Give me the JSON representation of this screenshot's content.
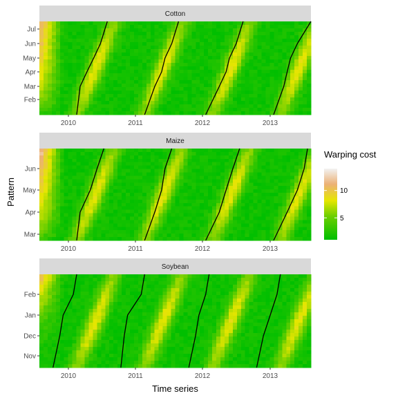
{
  "chart_data": {
    "type": "heatmap",
    "xlabel": "Time series",
    "ylabel": "Pattern",
    "x_ticks": [
      "2010",
      "2011",
      "2012",
      "2013"
    ],
    "legend": {
      "title": "Warping cost",
      "placement": "right",
      "ticks": [
        5,
        10
      ],
      "tick_labels": [
        "5",
        "10"
      ],
      "range": [
        1,
        14
      ],
      "colors": [
        "#00bf00",
        "#e6e600",
        "#ecb176",
        "#f2f2f2"
      ]
    },
    "panels": [
      {
        "name": "Cotton",
        "y_ticks": [
          "Feb",
          "Mar",
          "Apr",
          "May",
          "Jun",
          "Jul"
        ],
        "cost_min": 1.5,
        "cost_max": 12.5,
        "alignment_paths": [
          [
            [
              2010.15,
              "Feb"
            ],
            [
              2010.2,
              "Mar"
            ],
            [
              2010.3,
              "Apr"
            ],
            [
              2010.4,
              "May"
            ],
            [
              2010.5,
              "Jun"
            ],
            [
              2010.6,
              "Jul"
            ]
          ],
          [
            [
              2011.15,
              "Feb"
            ],
            [
              2011.3,
              "Mar"
            ],
            [
              2011.4,
              "Apr"
            ],
            [
              2011.45,
              "May"
            ],
            [
              2011.55,
              "Jun"
            ],
            [
              2011.65,
              "Jul"
            ]
          ],
          [
            [
              2012.05,
              "Feb"
            ],
            [
              2012.25,
              "Mar"
            ],
            [
              2012.35,
              "Apr"
            ],
            [
              2012.4,
              "May"
            ],
            [
              2012.5,
              "Jun"
            ],
            [
              2012.6,
              "Jul"
            ]
          ],
          [
            [
              2013.05,
              "Feb"
            ],
            [
              2013.2,
              "Mar"
            ],
            [
              2013.25,
              "Apr"
            ],
            [
              2013.3,
              "May"
            ],
            [
              2013.4,
              "Jun"
            ],
            [
              2013.6,
              "Jul"
            ]
          ]
        ]
      },
      {
        "name": "Maize",
        "y_ticks": [
          "Mar",
          "Apr",
          "May",
          "Jun"
        ],
        "cost_min": 1.5,
        "cost_max": 13.0,
        "alignment_paths": [
          [
            [
              2010.15,
              "Mar"
            ],
            [
              2010.2,
              "Apr"
            ],
            [
              2010.35,
              "May"
            ],
            [
              2010.45,
              "Jun"
            ],
            [
              2010.55,
              "Jun"
            ]
          ],
          [
            [
              2011.15,
              "Mar"
            ],
            [
              2011.3,
              "Apr"
            ],
            [
              2011.4,
              "May"
            ],
            [
              2011.45,
              "Jun"
            ],
            [
              2011.55,
              "Jun"
            ]
          ],
          [
            [
              2012.05,
              "Mar"
            ],
            [
              2012.25,
              "Apr"
            ],
            [
              2012.35,
              "May"
            ],
            [
              2012.45,
              "Jun"
            ],
            [
              2012.55,
              "Jun"
            ]
          ],
          [
            [
              2013.05,
              "Mar"
            ],
            [
              2013.25,
              "Apr"
            ],
            [
              2013.4,
              "May"
            ],
            [
              2013.5,
              "Jun"
            ],
            [
              2013.55,
              "Jun"
            ]
          ]
        ]
      },
      {
        "name": "Soybean",
        "y_ticks": [
          "Nov",
          "Dec",
          "Jan",
          "Feb"
        ],
        "cost_min": 1.5,
        "cost_max": 12.0,
        "alignment_paths": [
          [
            [
              2009.8,
              "Nov"
            ],
            [
              2009.9,
              "Dec"
            ],
            [
              2009.95,
              "Jan"
            ],
            [
              2010.1,
              "Feb"
            ],
            [
              2010.15,
              "Feb"
            ]
          ],
          [
            [
              2010.8,
              "Nov"
            ],
            [
              2010.85,
              "Dec"
            ],
            [
              2010.9,
              "Jan"
            ],
            [
              2011.1,
              "Feb"
            ],
            [
              2011.15,
              "Feb"
            ]
          ],
          [
            [
              2011.8,
              "Nov"
            ],
            [
              2011.9,
              "Dec"
            ],
            [
              2011.95,
              "Jan"
            ],
            [
              2012.05,
              "Feb"
            ],
            [
              2012.1,
              "Feb"
            ]
          ],
          [
            [
              2012.8,
              "Nov"
            ],
            [
              2012.9,
              "Dec"
            ],
            [
              2013.0,
              "Jan"
            ],
            [
              2013.1,
              "Feb"
            ],
            [
              2013.15,
              "Feb"
            ]
          ]
        ]
      }
    ]
  }
}
